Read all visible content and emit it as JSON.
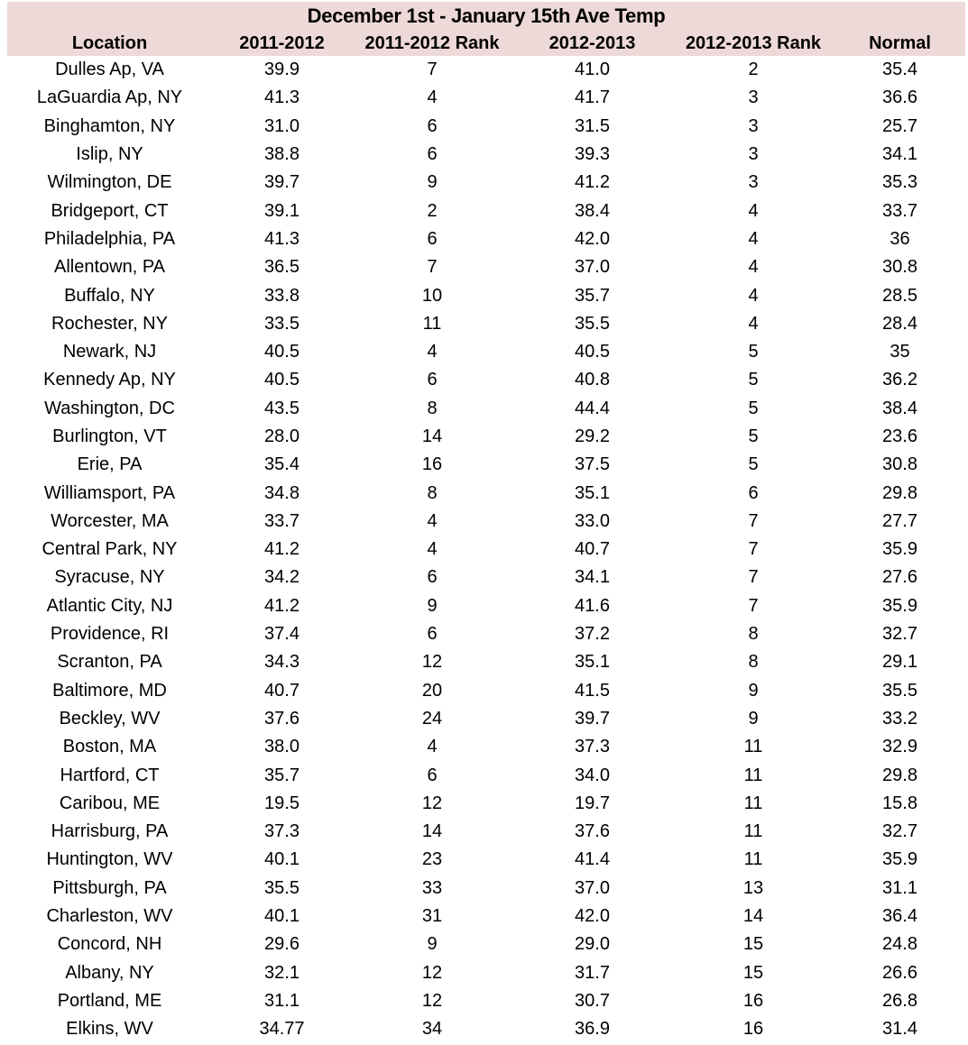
{
  "colors": {
    "header_background": "#EDD9D8",
    "row_background": "#FFFFFF",
    "text": "#000000"
  },
  "chart_data": {
    "type": "table",
    "title": "December 1st - January 15th Ave Temp",
    "columns": [
      "Location",
      "2011-2012",
      "2011-2012 Rank",
      "2012-2013",
      "2012-2013 Rank",
      "Normal"
    ],
    "rows": [
      [
        "Dulles Ap, VA",
        "39.9",
        "7",
        "41.0",
        "2",
        "35.4"
      ],
      [
        "LaGuardia Ap, NY",
        "41.3",
        "4",
        "41.7",
        "3",
        "36.6"
      ],
      [
        "Binghamton, NY",
        "31.0",
        "6",
        "31.5",
        "3",
        "25.7"
      ],
      [
        "Islip, NY",
        "38.8",
        "6",
        "39.3",
        "3",
        "34.1"
      ],
      [
        "Wilmington, DE",
        "39.7",
        "9",
        "41.2",
        "3",
        "35.3"
      ],
      [
        "Bridgeport, CT",
        "39.1",
        "2",
        "38.4",
        "4",
        "33.7"
      ],
      [
        "Philadelphia, PA",
        "41.3",
        "6",
        "42.0",
        "4",
        "36"
      ],
      [
        "Allentown, PA",
        "36.5",
        "7",
        "37.0",
        "4",
        "30.8"
      ],
      [
        "Buffalo, NY",
        "33.8",
        "10",
        "35.7",
        "4",
        "28.5"
      ],
      [
        "Rochester, NY",
        "33.5",
        "11",
        "35.5",
        "4",
        "28.4"
      ],
      [
        "Newark, NJ",
        "40.5",
        "4",
        "40.5",
        "5",
        "35"
      ],
      [
        "Kennedy Ap, NY",
        "40.5",
        "6",
        "40.8",
        "5",
        "36.2"
      ],
      [
        "Washington, DC",
        "43.5",
        "8",
        "44.4",
        "5",
        "38.4"
      ],
      [
        "Burlington, VT",
        "28.0",
        "14",
        "29.2",
        "5",
        "23.6"
      ],
      [
        "Erie, PA",
        "35.4",
        "16",
        "37.5",
        "5",
        "30.8"
      ],
      [
        "Williamsport, PA",
        "34.8",
        "8",
        "35.1",
        "6",
        "29.8"
      ],
      [
        "Worcester, MA",
        "33.7",
        "4",
        "33.0",
        "7",
        "27.7"
      ],
      [
        "Central Park, NY",
        "41.2",
        "4",
        "40.7",
        "7",
        "35.9"
      ],
      [
        "Syracuse, NY",
        "34.2",
        "6",
        "34.1",
        "7",
        "27.6"
      ],
      [
        "Atlantic City, NJ",
        "41.2",
        "9",
        "41.6",
        "7",
        "35.9"
      ],
      [
        "Providence, RI",
        "37.4",
        "6",
        "37.2",
        "8",
        "32.7"
      ],
      [
        "Scranton, PA",
        "34.3",
        "12",
        "35.1",
        "8",
        "29.1"
      ],
      [
        "Baltimore, MD",
        "40.7",
        "20",
        "41.5",
        "9",
        "35.5"
      ],
      [
        "Beckley, WV",
        "37.6",
        "24",
        "39.7",
        "9",
        "33.2"
      ],
      [
        "Boston, MA",
        "38.0",
        "4",
        "37.3",
        "11",
        "32.9"
      ],
      [
        "Hartford, CT",
        "35.7",
        "6",
        "34.0",
        "11",
        "29.8"
      ],
      [
        "Caribou, ME",
        "19.5",
        "12",
        "19.7",
        "11",
        "15.8"
      ],
      [
        "Harrisburg, PA",
        "37.3",
        "14",
        "37.6",
        "11",
        "32.7"
      ],
      [
        "Huntington, WV",
        "40.1",
        "23",
        "41.4",
        "11",
        "35.9"
      ],
      [
        "Pittsburgh, PA",
        "35.5",
        "33",
        "37.0",
        "13",
        "31.1"
      ],
      [
        "Charleston, WV",
        "40.1",
        "31",
        "42.0",
        "14",
        "36.4"
      ],
      [
        "Concord, NH",
        "29.6",
        "9",
        "29.0",
        "15",
        "24.8"
      ],
      [
        "Albany, NY",
        "32.1",
        "12",
        "31.7",
        "15",
        "26.6"
      ],
      [
        "Portland, ME",
        "31.1",
        "12",
        "30.7",
        "16",
        "26.8"
      ],
      [
        "Elkins, WV",
        "34.77",
        "34",
        "36.9",
        "16",
        "31.4"
      ]
    ]
  }
}
